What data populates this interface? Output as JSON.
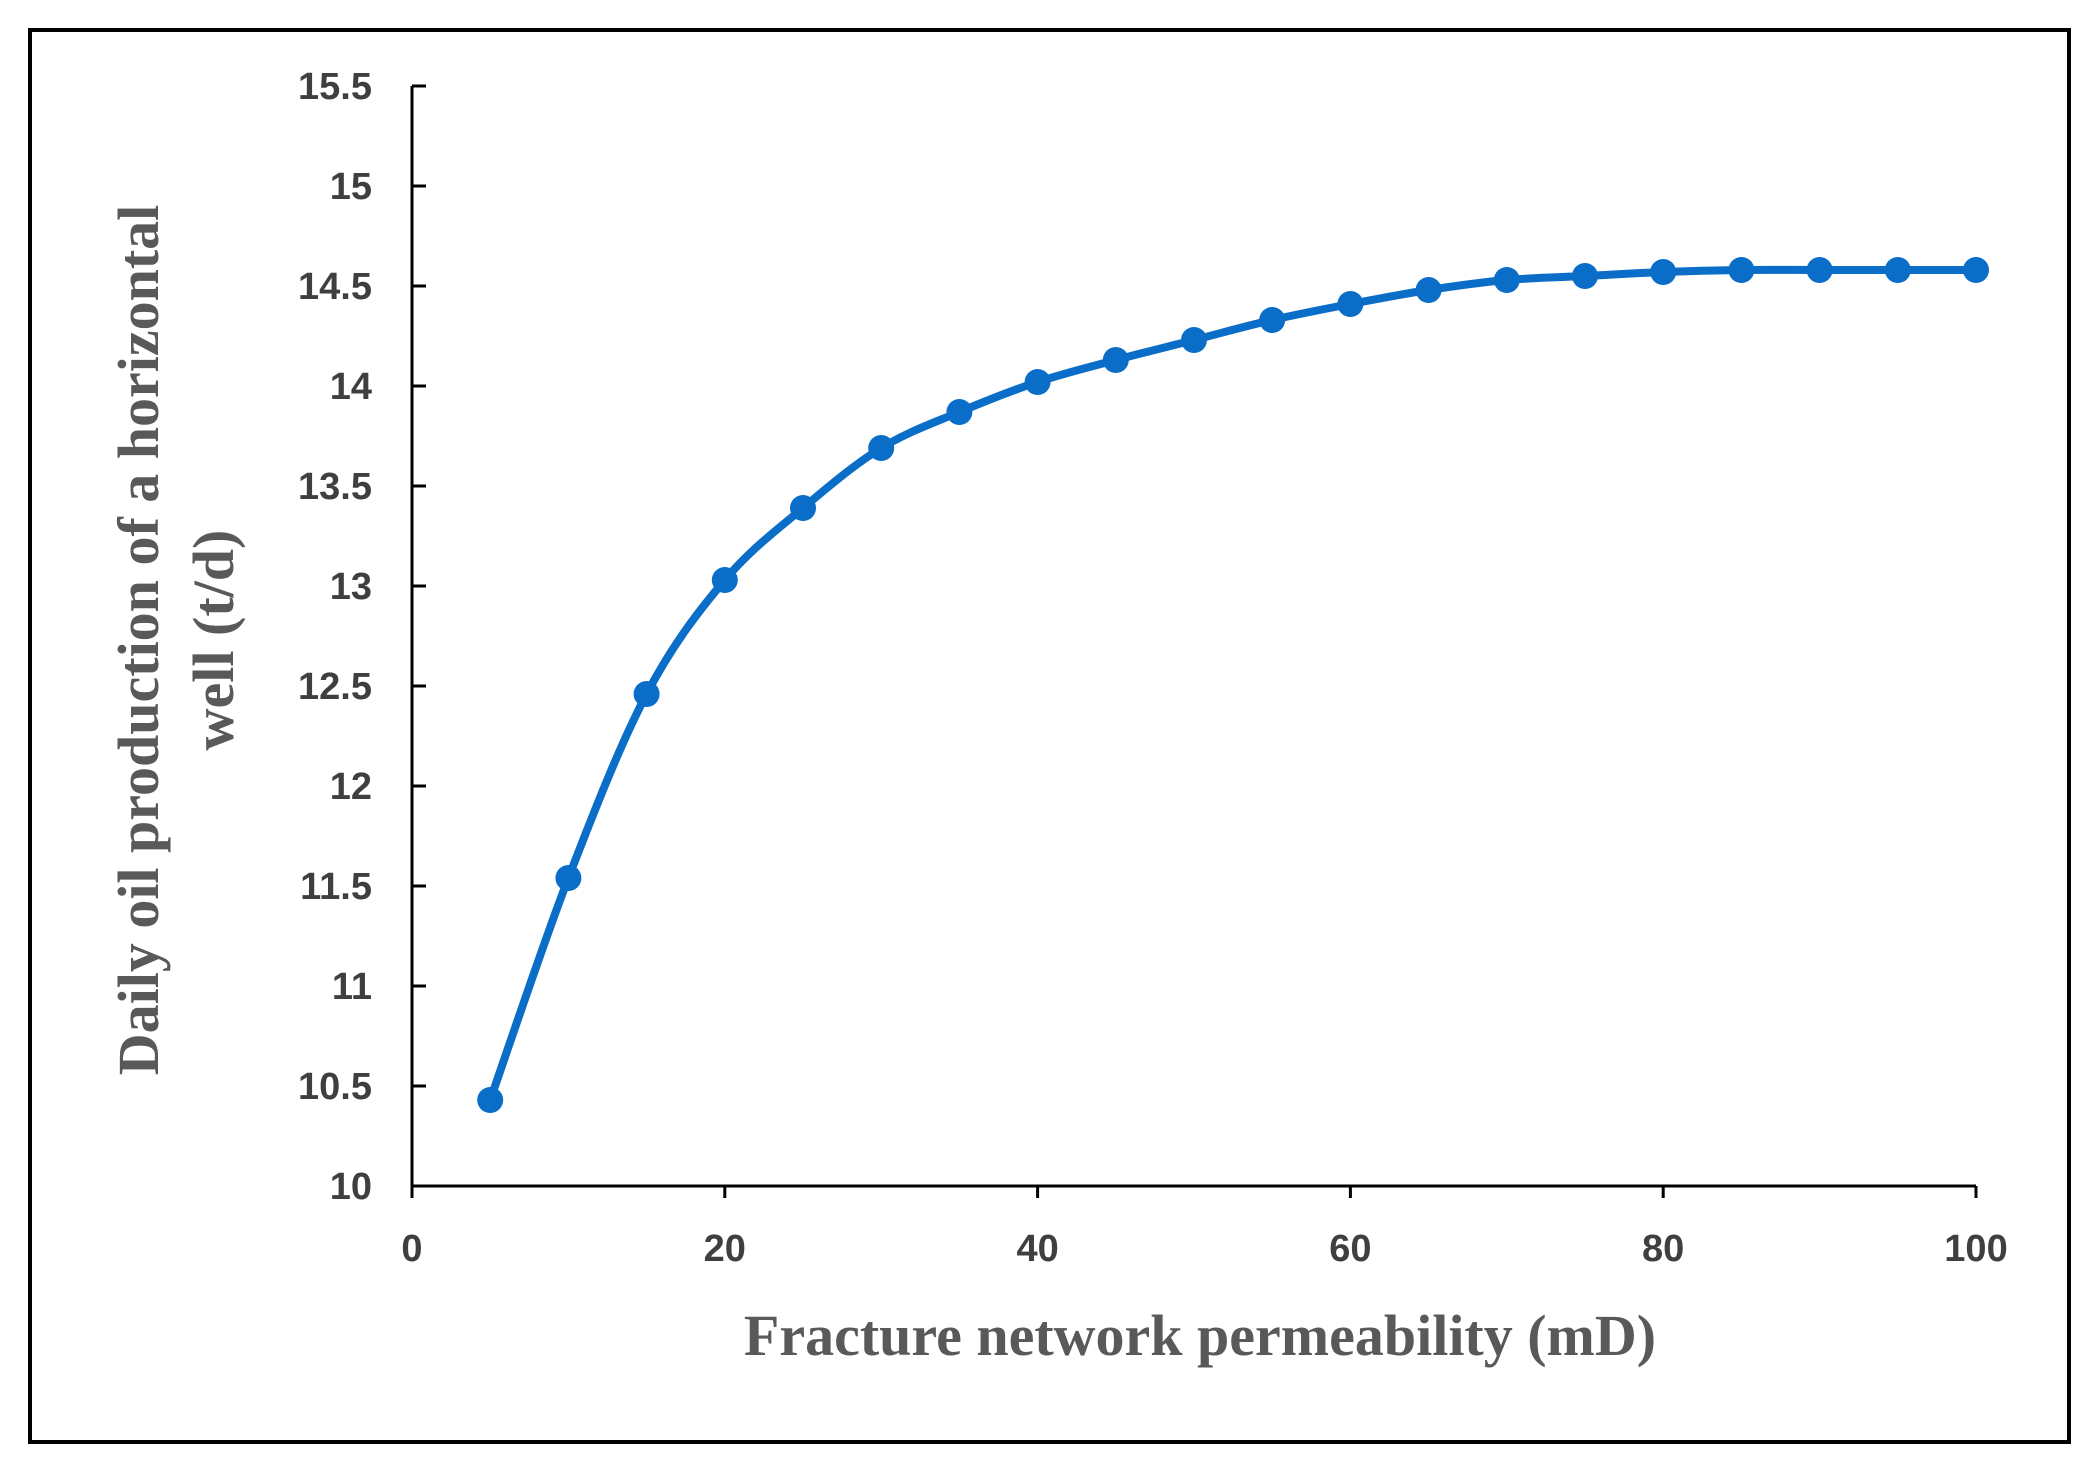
{
  "chart_data": {
    "type": "line",
    "title": "",
    "xlabel": "Fracture network permeability (mD)",
    "ylabel_lines": [
      "Daily oil production of a horizontal",
      "well (t/d)"
    ],
    "xlim": [
      0,
      100
    ],
    "ylim": [
      10,
      15.5
    ],
    "xticks": [
      0,
      20,
      40,
      60,
      80,
      100
    ],
    "yticks": [
      10,
      10.5,
      11,
      11.5,
      12,
      12.5,
      13,
      13.5,
      14,
      14.5,
      15,
      15.5
    ],
    "grid": false,
    "legend": "none",
    "series": [
      {
        "x": [
          5,
          10,
          15,
          20,
          25,
          30,
          35,
          40,
          45,
          50,
          55,
          60,
          65,
          70,
          75,
          80,
          85,
          90,
          95,
          100
        ],
        "y": [
          10.43,
          11.54,
          12.46,
          13.03,
          13.39,
          13.69,
          13.87,
          14.02,
          14.13,
          14.23,
          14.33,
          14.41,
          14.48,
          14.53,
          14.55,
          14.57,
          14.58,
          14.58,
          14.58,
          14.58
        ]
      }
    ],
    "colors": {
      "line": "#0a6ec8",
      "axis": "#000000",
      "frame": "#000000"
    }
  }
}
